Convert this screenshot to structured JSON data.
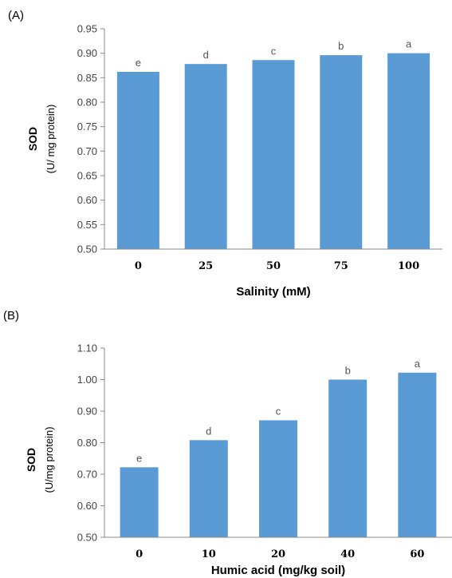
{
  "chart_data": [
    {
      "type": "bar",
      "panel_label": "(A)",
      "categories": [
        "0",
        "25",
        "50",
        "75",
        "100"
      ],
      "values": [
        0.862,
        0.878,
        0.886,
        0.896,
        0.9
      ],
      "bar_labels": [
        "e",
        "d",
        "c",
        "b",
        "a"
      ],
      "xlabel": "Salinity (mM)",
      "ylabel": "SOD",
      "ylabel_unit": "(U/ mg protein)",
      "ylim": [
        0.5,
        0.95
      ],
      "yticks": [
        "0.50",
        "0.55",
        "0.60",
        "0.65",
        "0.70",
        "0.75",
        "0.80",
        "0.85",
        "0.90",
        "0.95"
      ],
      "grid": false,
      "bar_color": "#5B9BD5"
    },
    {
      "type": "bar",
      "panel_label": "(B)",
      "categories": [
        "0",
        "10",
        "20",
        "40",
        "60"
      ],
      "values": [
        0.722,
        0.808,
        0.871,
        1.0,
        1.022
      ],
      "bar_labels": [
        "e",
        "d",
        "c",
        "b",
        "a"
      ],
      "xlabel": "Humic acid (mg/kg soil)",
      "ylabel": "SOD",
      "ylabel_unit": "(U/mg protein)",
      "ylim": [
        0.5,
        1.1
      ],
      "yticks": [
        "0.50",
        "0.60",
        "0.70",
        "0.80",
        "0.90",
        "1.00",
        "1.10"
      ],
      "grid": false,
      "bar_color": "#5B9BD5"
    }
  ]
}
